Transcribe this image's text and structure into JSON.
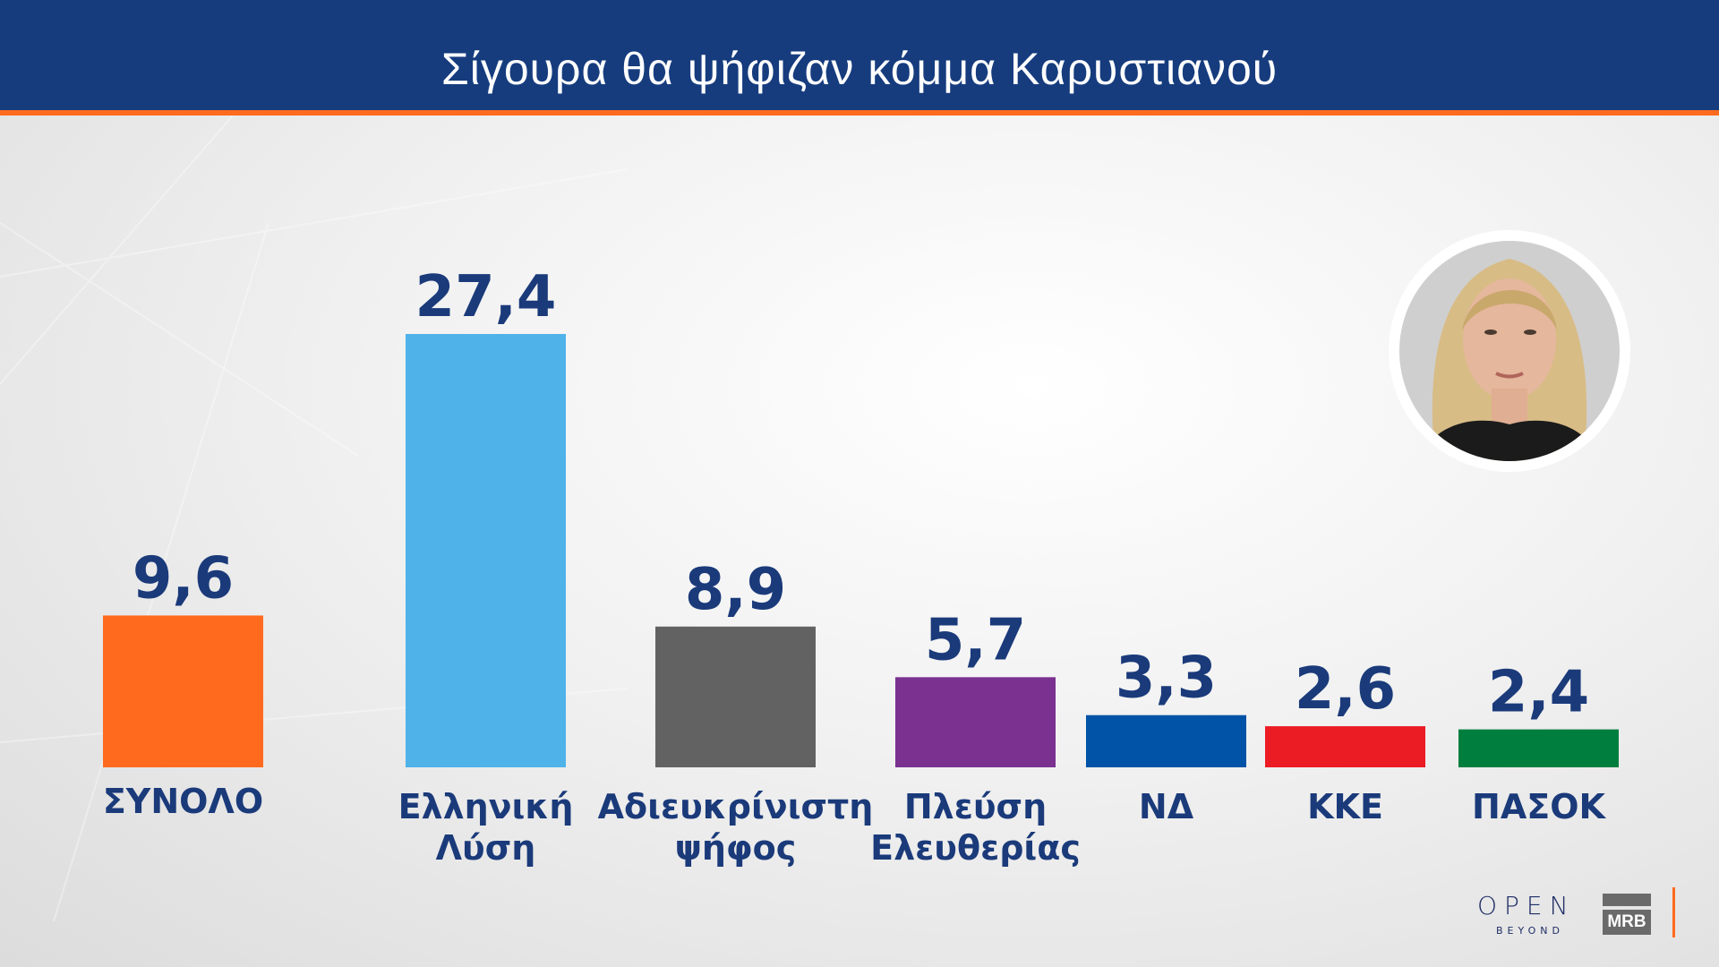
{
  "header": {
    "title": "Σίγουρα θα ψήφιζαν κόμμα Καρυστιανού"
  },
  "logos": {
    "open": "OPEN",
    "open_sub": "BEYOND",
    "pollster": "MRB"
  },
  "colors": {
    "header": "#163c7e",
    "accent": "#ff6a1f",
    "labels": "#1a3a7a"
  },
  "chart_data": {
    "type": "bar",
    "title": "Σίγουρα θα ψήφιζαν κόμμα Καρυστιανού",
    "categories": [
      [
        "ΣΥΝΟΛΟ"
      ],
      [
        "Ελληνική",
        "Λύση"
      ],
      [
        "Αδιευκρίνιστη",
        "ψήφος"
      ],
      [
        "Πλεύση",
        "Ελευθερίας"
      ],
      [
        "ΝΔ"
      ],
      [
        "ΚΚΕ"
      ],
      [
        "ΠΑΣΟΚ"
      ]
    ],
    "values": [
      9.6,
      27.4,
      8.9,
      5.7,
      3.3,
      2.6,
      2.4
    ],
    "value_labels": [
      "9,6",
      "27,4",
      "8,9",
      "5,7",
      "3,3",
      "2,6",
      "2,4"
    ],
    "bar_colors": [
      "#ff6a1f",
      "#4fb3ea",
      "#626262",
      "#7a3190",
      "#0053a6",
      "#ec1c24",
      "#007e3e"
    ],
    "xlabel": "",
    "ylabel": "",
    "grid": false,
    "legend": "none"
  }
}
